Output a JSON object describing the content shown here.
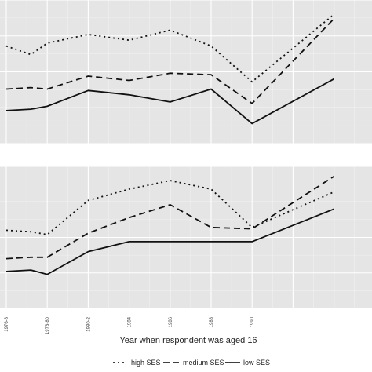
{
  "chart_data": {
    "type": "line",
    "xlabel": "Year when respondent was aged 16",
    "x_ticks": [
      "1976-8",
      "1978-80",
      "1980-2",
      "1984",
      "1986",
      "1988",
      "1990"
    ],
    "grid": true,
    "legend_position": "bottom",
    "series_styles": [
      {
        "name": "high SES",
        "dash": "2,4"
      },
      {
        "name": "medium SES",
        "dash": "8,5"
      },
      {
        "name": "low SES",
        "dash": ""
      }
    ],
    "panels": [
      {
        "panel": "top",
        "series": [
          {
            "name": "high SES",
            "points": [
              [
                0.0,
                0.68
              ],
              [
                0.6,
                0.62
              ],
              [
                1.0,
                0.7
              ],
              [
                2.0,
                0.76
              ],
              [
                3.0,
                0.72
              ],
              [
                4.0,
                0.79
              ],
              [
                5.0,
                0.68
              ],
              [
                6.0,
                0.43
              ],
              [
                8.0,
                0.9
              ]
            ]
          },
          {
            "name": "medium SES",
            "points": [
              [
                0.0,
                0.38
              ],
              [
                0.6,
                0.39
              ],
              [
                1.0,
                0.38
              ],
              [
                2.0,
                0.47
              ],
              [
                3.0,
                0.44
              ],
              [
                4.0,
                0.49
              ],
              [
                5.0,
                0.48
              ],
              [
                6.0,
                0.28
              ],
              [
                8.0,
                0.87
              ]
            ]
          },
          {
            "name": "low SES",
            "points": [
              [
                0.0,
                0.23
              ],
              [
                0.6,
                0.24
              ],
              [
                1.0,
                0.26
              ],
              [
                2.0,
                0.37
              ],
              [
                3.0,
                0.34
              ],
              [
                4.0,
                0.29
              ],
              [
                5.0,
                0.38
              ],
              [
                6.0,
                0.14
              ],
              [
                8.0,
                0.45
              ]
            ]
          }
        ]
      },
      {
        "panel": "bottom",
        "series": [
          {
            "name": "high SES",
            "points": [
              [
                0.0,
                0.55
              ],
              [
                0.6,
                0.54
              ],
              [
                1.0,
                0.52
              ],
              [
                2.0,
                0.76
              ],
              [
                3.0,
                0.84
              ],
              [
                4.0,
                0.9
              ],
              [
                5.0,
                0.84
              ],
              [
                6.0,
                0.57
              ],
              [
                8.0,
                0.82
              ]
            ]
          },
          {
            "name": "medium SES",
            "points": [
              [
                0.0,
                0.35
              ],
              [
                0.6,
                0.36
              ],
              [
                1.0,
                0.36
              ],
              [
                2.0,
                0.53
              ],
              [
                3.0,
                0.64
              ],
              [
                4.0,
                0.73
              ],
              [
                5.0,
                0.57
              ],
              [
                6.0,
                0.56
              ],
              [
                8.0,
                0.93
              ]
            ]
          },
          {
            "name": "low SES",
            "points": [
              [
                0.0,
                0.26
              ],
              [
                0.6,
                0.27
              ],
              [
                1.0,
                0.24
              ],
              [
                2.0,
                0.4
              ],
              [
                3.0,
                0.47
              ],
              [
                4.0,
                0.47
              ],
              [
                5.0,
                0.47
              ],
              [
                6.0,
                0.47
              ],
              [
                8.0,
                0.7
              ]
            ]
          }
        ]
      }
    ]
  }
}
